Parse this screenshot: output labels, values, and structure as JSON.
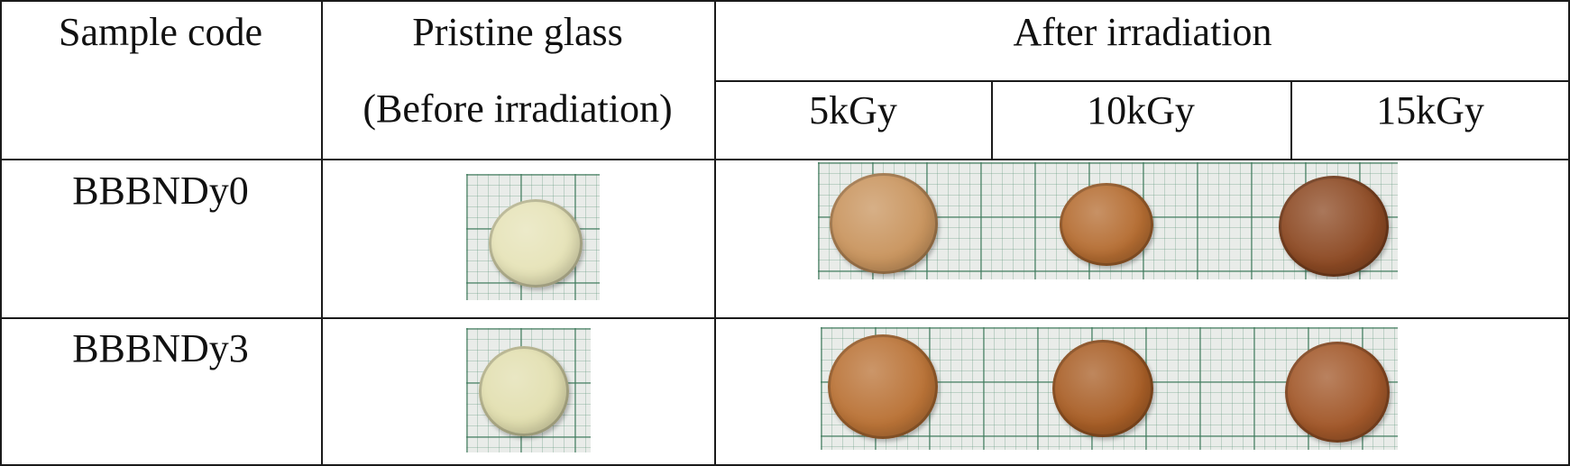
{
  "headers": {
    "sample_code": "Sample code",
    "pristine_line1": "Pristine glass",
    "pristine_line2": "(Before irradiation)",
    "after": "After irradiation",
    "doses": [
      "5kGy",
      "10kGy",
      "15kGy"
    ]
  },
  "rows": [
    {
      "code": "BBBNDy0",
      "pristine_color": "#e6e3b8",
      "irradiated_colors": [
        "#c9955f",
        "#b56d32",
        "#8d4a24"
      ]
    },
    {
      "code": "BBBNDy3",
      "pristine_color": "#e2dfb0",
      "irradiated_colors": [
        "#ba7337",
        "#a95f27",
        "#a2582a"
      ]
    }
  ]
}
